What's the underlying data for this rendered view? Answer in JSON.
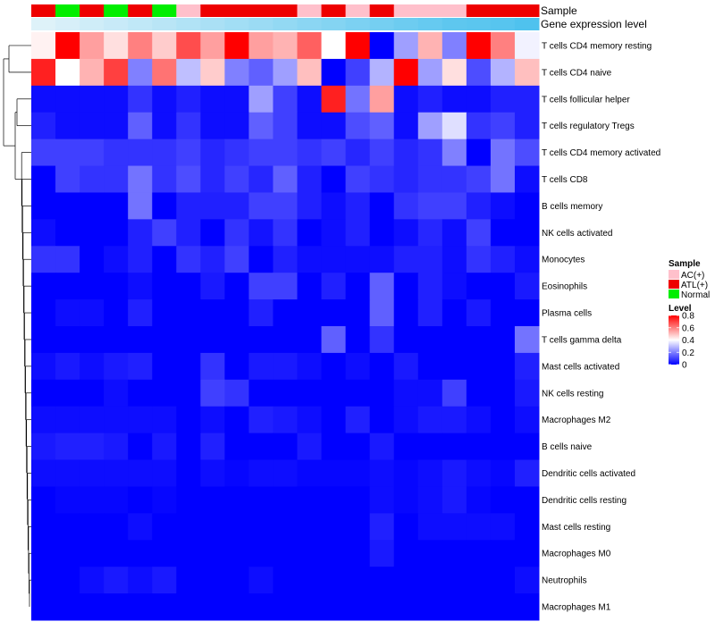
{
  "chart_data": {
    "type": "heatmap",
    "title": "",
    "annotation_tracks": [
      "Sample",
      "Gene expression level"
    ],
    "sample_groups": [
      "ATL(+)",
      "Normal",
      "ATL(+)",
      "Normal",
      "ATL(+)",
      "Normal",
      "AC(+)",
      "ATL(+)",
      "ATL(+)",
      "ATL(+)",
      "ATL(+)",
      "AC(+)",
      "ATL(+)",
      "AC(+)",
      "ATL(+)",
      "AC(+)",
      "AC(+)",
      "AC(+)",
      "ATL(+)",
      "ATL(+)",
      "ATL(+)"
    ],
    "gene_expression_level": [
      0.05,
      0.1,
      0.15,
      0.2,
      0.25,
      0.3,
      0.35,
      0.4,
      0.45,
      0.5,
      0.55,
      0.6,
      0.65,
      0.7,
      0.75,
      0.8,
      0.85,
      0.9,
      0.92,
      0.95,
      1.0
    ],
    "rows": [
      "T cells CD4 memory resting",
      "T cells CD4 naive",
      "T cells follicular helper",
      "T cells regulatory  Tregs",
      "T cells CD4 memory activated",
      "T cells CD8",
      "B cells memory",
      "NK cells activated",
      "Monocytes",
      "Eosinophils",
      "Plasma cells",
      "T cells gamma delta",
      "Mast cells activated",
      "NK cells resting",
      "Macrophages M2",
      "B cells naive",
      "Dendritic cells activated",
      "Dendritic cells resting",
      "Mast cells resting",
      "Macrophages M0",
      "Neutrophils",
      "Macrophages M1"
    ],
    "values": [
      [
        0.42,
        0.8,
        0.55,
        0.45,
        0.6,
        0.48,
        0.68,
        0.55,
        0.8,
        0.55,
        0.52,
        0.65,
        0.4,
        0.8,
        0.0,
        0.25,
        0.52,
        0.2,
        0.8,
        0.6,
        0.38
      ],
      [
        0.75,
        0.4,
        0.52,
        0.7,
        0.2,
        0.62,
        0.3,
        0.48,
        0.2,
        0.15,
        0.25,
        0.5,
        0.0,
        0.1,
        0.28,
        0.8,
        0.25,
        0.45,
        0.12,
        0.28,
        0.5
      ],
      [
        0.02,
        0.02,
        0.02,
        0.02,
        0.08,
        0.02,
        0.05,
        0.02,
        0.02,
        0.25,
        0.1,
        0.02,
        0.75,
        0.18,
        0.55,
        0.02,
        0.05,
        0.02,
        0.02,
        0.05,
        0.05
      ],
      [
        0.05,
        0.02,
        0.02,
        0.02,
        0.15,
        0.02,
        0.08,
        0.02,
        0.02,
        0.15,
        0.1,
        0.02,
        0.02,
        0.12,
        0.15,
        0.02,
        0.25,
        0.35,
        0.08,
        0.1,
        0.05
      ],
      [
        0.1,
        0.1,
        0.1,
        0.08,
        0.08,
        0.08,
        0.1,
        0.06,
        0.08,
        0.1,
        0.1,
        0.08,
        0.1,
        0.06,
        0.1,
        0.06,
        0.08,
        0.2,
        0.0,
        0.18,
        0.12
      ],
      [
        0.0,
        0.1,
        0.08,
        0.08,
        0.18,
        0.08,
        0.12,
        0.06,
        0.1,
        0.06,
        0.15,
        0.05,
        0.0,
        0.1,
        0.08,
        0.06,
        0.08,
        0.08,
        0.1,
        0.18,
        0.02
      ],
      [
        0.0,
        0.0,
        0.0,
        0.0,
        0.18,
        0.0,
        0.05,
        0.05,
        0.05,
        0.1,
        0.1,
        0.05,
        0.02,
        0.05,
        0.0,
        0.08,
        0.1,
        0.1,
        0.05,
        0.02,
        0.0
      ],
      [
        0.02,
        0.0,
        0.0,
        0.0,
        0.05,
        0.1,
        0.05,
        0.0,
        0.08,
        0.03,
        0.08,
        0.0,
        0.02,
        0.05,
        0.0,
        0.02,
        0.06,
        0.02,
        0.1,
        0.0,
        0.0
      ],
      [
        0.08,
        0.08,
        0.0,
        0.02,
        0.05,
        0.0,
        0.08,
        0.05,
        0.1,
        0.0,
        0.05,
        0.02,
        0.02,
        0.02,
        0.02,
        0.05,
        0.05,
        0.02,
        0.08,
        0.05,
        0.02
      ],
      [
        0.0,
        0.0,
        0.0,
        0.0,
        0.02,
        0.0,
        0.0,
        0.04,
        0.0,
        0.1,
        0.1,
        0.0,
        0.05,
        0.0,
        0.15,
        0.0,
        0.05,
        0.02,
        0.0,
        0.0,
        0.04
      ],
      [
        0.0,
        0.02,
        0.02,
        0.0,
        0.05,
        0.0,
        0.0,
        0.0,
        0.0,
        0.05,
        0.0,
        0.0,
        0.0,
        0.0,
        0.15,
        0.0,
        0.05,
        0.0,
        0.04,
        0.0,
        0.0
      ],
      [
        0.0,
        0.0,
        0.0,
        0.0,
        0.0,
        0.0,
        0.0,
        0.0,
        0.0,
        0.0,
        0.0,
        0.0,
        0.15,
        0.0,
        0.08,
        0.0,
        0.0,
        0.0,
        0.0,
        0.0,
        0.18
      ],
      [
        0.02,
        0.04,
        0.02,
        0.04,
        0.05,
        0.0,
        0.0,
        0.08,
        0.0,
        0.04,
        0.04,
        0.02,
        0.0,
        0.02,
        0.0,
        0.04,
        0.0,
        0.0,
        0.0,
        0.0,
        0.05
      ],
      [
        0.0,
        0.0,
        0.0,
        0.02,
        0.0,
        0.0,
        0.0,
        0.1,
        0.08,
        0.0,
        0.0,
        0.0,
        0.0,
        0.0,
        0.0,
        0.02,
        0.02,
        0.1,
        0.0,
        0.0,
        0.04
      ],
      [
        0.02,
        0.02,
        0.02,
        0.02,
        0.02,
        0.02,
        0.0,
        0.02,
        0.0,
        0.05,
        0.04,
        0.02,
        0.0,
        0.05,
        0.0,
        0.02,
        0.04,
        0.04,
        0.02,
        0.0,
        0.02
      ],
      [
        0.04,
        0.05,
        0.05,
        0.04,
        0.0,
        0.04,
        0.0,
        0.05,
        0.0,
        0.0,
        0.0,
        0.04,
        0.0,
        0.0,
        0.04,
        0.0,
        0.0,
        0.0,
        0.0,
        0.0,
        0.0
      ],
      [
        0.02,
        0.02,
        0.02,
        0.02,
        0.02,
        0.02,
        0.0,
        0.02,
        0.01,
        0.02,
        0.02,
        0.01,
        0.01,
        0.01,
        0.02,
        0.01,
        0.02,
        0.04,
        0.02,
        0.01,
        0.05
      ],
      [
        0.0,
        0.01,
        0.01,
        0.01,
        0.0,
        0.01,
        0.0,
        0.0,
        0.0,
        0.0,
        0.0,
        0.0,
        0.0,
        0.0,
        0.02,
        0.01,
        0.02,
        0.04,
        0.01,
        0.0,
        0.0
      ],
      [
        0.0,
        0.0,
        0.0,
        0.0,
        0.02,
        0.0,
        0.0,
        0.0,
        0.0,
        0.0,
        0.0,
        0.0,
        0.0,
        0.0,
        0.05,
        0.0,
        0.02,
        0.02,
        0.02,
        0.02,
        0.0
      ],
      [
        0.0,
        0.0,
        0.0,
        0.0,
        0.0,
        0.0,
        0.0,
        0.0,
        0.0,
        0.0,
        0.0,
        0.0,
        0.0,
        0.0,
        0.04,
        0.0,
        0.0,
        0.0,
        0.0,
        0.0,
        0.0
      ],
      [
        0.0,
        0.0,
        0.02,
        0.04,
        0.02,
        0.04,
        0.0,
        0.0,
        0.0,
        0.02,
        0.0,
        0.0,
        0.0,
        0.0,
        0.0,
        0.0,
        0.0,
        0.0,
        0.0,
        0.0,
        0.02
      ],
      [
        0.0,
        0.0,
        0.0,
        0.0,
        0.0,
        0.0,
        0.0,
        0.0,
        0.0,
        0.0,
        0.0,
        0.0,
        0.0,
        0.0,
        0.0,
        0.0,
        0.0,
        0.0,
        0.0,
        0.0,
        0.0
      ]
    ],
    "legend": {
      "sample_title": "Sample",
      "sample_entries": [
        {
          "label": "AC(+)",
          "color": "#FFC0CB"
        },
        {
          "label": "ATL(+)",
          "color": "#EE0000"
        },
        {
          "label": "Normal",
          "color": "#00EE00"
        }
      ],
      "level_title": "Level",
      "level_ticks": [
        0.8,
        0.6,
        0.4,
        0.2,
        0
      ],
      "level_range": [
        0,
        0.8
      ]
    },
    "colors": {
      "low": "#0000FF",
      "mid": "#FFFFFF",
      "high": "#FF0000",
      "expr_low": "#E6F4FA",
      "expr_high": "#4FC2EE"
    }
  }
}
